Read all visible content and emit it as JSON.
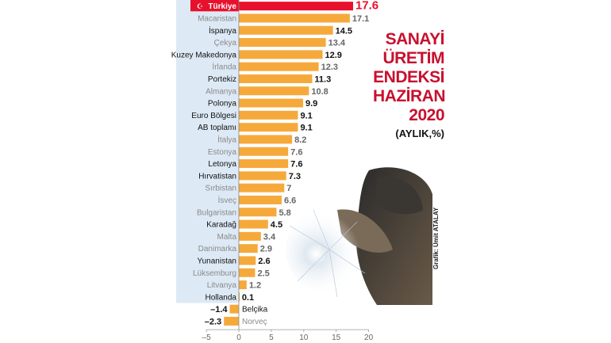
{
  "title_lines": [
    "SANAYİ",
    "ÜRETİM",
    "ENDEKSİ",
    "HAZİRAN",
    "2020"
  ],
  "subtitle": "(AYLIK,%)",
  "credit": "Grafik: Ümit ATALAY",
  "colors": {
    "bar": "#f6a93b",
    "highlight": "#e8112d",
    "label_bg": "#dde9f5",
    "dark_text": "#111111",
    "light_text": "#8a8a8a",
    "title": "#c8102e"
  },
  "chart_data": {
    "type": "bar",
    "orientation": "horizontal",
    "categories": [
      "Türkiye",
      "Macaristan",
      "İspanya",
      "Çekya",
      "Kuzey Makedonya",
      "İrlanda",
      "Portekiz",
      "Almanya",
      "Polonya",
      "Euro Bölgesi",
      "AB toplamı",
      "İtalya",
      "Estonya",
      "Letonya",
      "Hırvatistan",
      "Sırbistan",
      "İsveç",
      "Bulgaristan",
      "Karadağ",
      "Malta",
      "Danimarka",
      "Yunanistan",
      "Lüksemburg",
      "Litvanya",
      "Hollanda",
      "Belçika",
      "Norveç"
    ],
    "values": [
      17.6,
      17.1,
      14.5,
      13.4,
      12.9,
      12.3,
      11.3,
      10.8,
      9.9,
      9.1,
      9.1,
      8.2,
      7.6,
      7.6,
      7.3,
      7,
      6.6,
      5.8,
      4.5,
      3.4,
      2.9,
      2.6,
      2.5,
      1.2,
      0.1,
      -1.4,
      -2.3
    ],
    "value_labels": [
      "17.6",
      "17.1",
      "14.5",
      "13.4",
      "12.9",
      "12.3",
      "11.3",
      "10.8",
      "9.9",
      "9.1",
      "9.1",
      "8.2",
      "7.6",
      "7.6",
      "7.3",
      "7",
      "6.6",
      "5.8",
      "4.5",
      "3.4",
      "2.9",
      "2.6",
      "2.5",
      "1.2",
      "0.1",
      "–1.4",
      "–2.3"
    ],
    "label_style": [
      "highlight",
      "muted",
      "dark",
      "muted",
      "dark",
      "muted",
      "dark",
      "muted",
      "dark",
      "dark",
      "dark",
      "muted",
      "muted",
      "dark",
      "dark",
      "muted",
      "muted",
      "muted",
      "dark",
      "muted",
      "muted",
      "dark",
      "muted",
      "muted",
      "dark",
      "dark",
      "dark"
    ],
    "xlim": [
      -5,
      20
    ],
    "x_ticks": [
      -5,
      0,
      5,
      10,
      15,
      20
    ],
    "x_tick_labels": [
      "–5",
      "0",
      "5",
      "10",
      "15",
      "20"
    ],
    "grid": false
  }
}
